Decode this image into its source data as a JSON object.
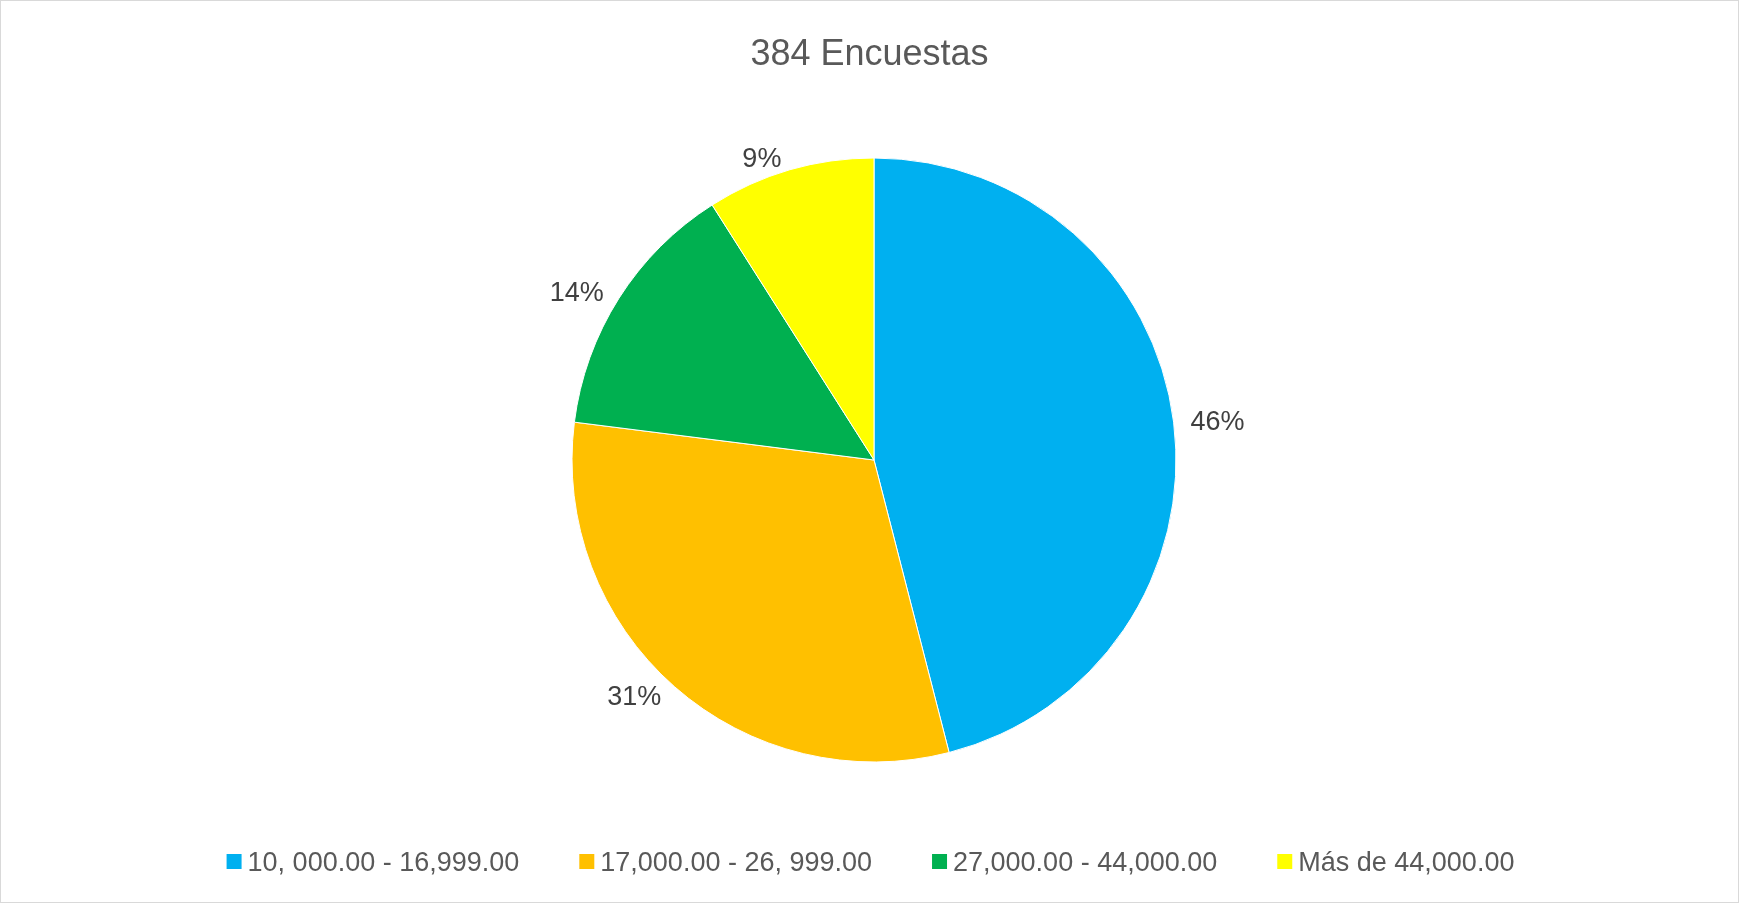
{
  "chart_data": {
    "type": "pie",
    "title": "384 Encuestas",
    "categories": [
      "10, 000.00 - 16,999.00",
      "17,000.00 - 26, 999.00",
      "27,000.00 - 44,000.00",
      "Más de 44,000.00"
    ],
    "values": [
      46,
      31,
      14,
      9
    ],
    "value_labels": [
      "46%",
      "31%",
      "14%",
      "9%"
    ],
    "colors": [
      "#00b0f0",
      "#ffc000",
      "#00b050",
      "#ffff00"
    ],
    "legend": "bottom"
  }
}
